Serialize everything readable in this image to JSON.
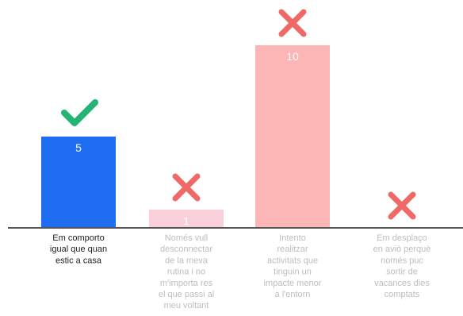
{
  "chart_data": {
    "type": "bar",
    "categories": [
      [
        "Em comporto",
        "igual que quan",
        "estic a casa"
      ],
      [
        "Només vull",
        "desconnectar",
        "de la meva",
        "rutina i no",
        "m'importa res",
        "el que passi al",
        "meu voltant"
      ],
      [
        "Intento",
        "realitzar",
        "activitats que",
        "tinguin un",
        "impacte menor",
        "a l'entorn"
      ],
      [
        "Em desplaço",
        "en avió perquè",
        "només puc",
        "sortir de",
        "vacances dies",
        "comptats"
      ]
    ],
    "values": [
      5,
      1,
      10,
      0
    ],
    "value_labels": [
      "5",
      "1",
      "10",
      ""
    ],
    "markers": [
      "check-icon",
      "cross-icon",
      "cross-icon",
      "cross-icon"
    ],
    "ylim": [
      0,
      10
    ],
    "grid": false,
    "legend": "none",
    "title": "",
    "xlabel": "",
    "ylabel": ""
  },
  "colors": {
    "bars": [
      "#1f6ef2",
      "#f9cfd9",
      "#fcb6b5",
      "#fcb6b5"
    ],
    "labels": [
      "#222222",
      "#bdbdbd",
      "#bdbdbd",
      "#bdbdbd"
    ],
    "check": "#22b573",
    "cross": "#ef6a67",
    "axis": "#555555"
  }
}
